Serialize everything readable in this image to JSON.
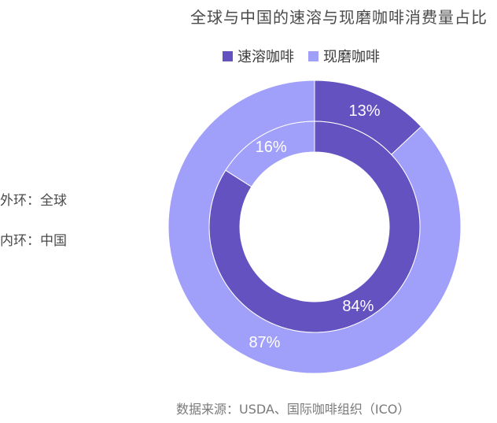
{
  "chart_data": {
    "type": "pie",
    "title": "全球与中国的速溶与现磨咖啡消费量占比",
    "legend": [
      {
        "name": "速溶咖啡",
        "color": "#6352c0"
      },
      {
        "name": "现磨咖啡",
        "color": "#a09ffa"
      }
    ],
    "rings": [
      {
        "ring": "outer",
        "label": "外环：全球",
        "slices": [
          {
            "category": "速溶咖啡",
            "value": 13,
            "label": "13%"
          },
          {
            "category": "现磨咖啡",
            "value": 87,
            "label": "87%"
          }
        ]
      },
      {
        "ring": "inner",
        "label": "内环：中国",
        "slices": [
          {
            "category": "速溶咖啡",
            "value": 84,
            "label": "84%"
          },
          {
            "category": "现磨咖啡",
            "value": 16,
            "label": "16%"
          }
        ]
      }
    ],
    "legend_position": "top",
    "source": "数据来源：USDA、国际咖啡组织（ICO）"
  }
}
